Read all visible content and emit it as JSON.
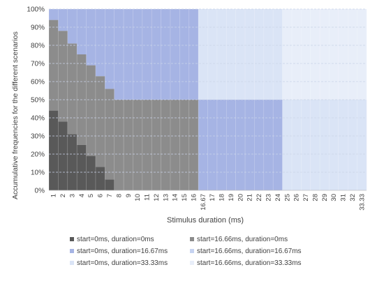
{
  "chart_data": {
    "type": "area",
    "stacked": true,
    "percent_stacked": true,
    "xlabel": "Stimulus duration (ms)",
    "ylabel": "Accumulative frequencies for the different scenarios",
    "y_ticks": [
      "0%",
      "10%",
      "20%",
      "30%",
      "40%",
      "50%",
      "60%",
      "70%",
      "80%",
      "90%",
      "100%"
    ],
    "ylim": [
      0,
      100
    ],
    "grid": true,
    "legend_position": "bottom",
    "categories": [
      "1",
      "2",
      "3",
      "4",
      "5",
      "6",
      "7",
      "8",
      "9",
      "10",
      "11",
      "12",
      "13",
      "14",
      "15",
      "16",
      "16.67",
      "17",
      "18",
      "19",
      "20",
      "21",
      "22",
      "23",
      "24",
      "25",
      "26",
      "27",
      "28",
      "29",
      "30",
      "31",
      "32",
      "33.33"
    ],
    "series": [
      {
        "name": "start=0ms, duration=0ms",
        "color": "#595959",
        "values": [
          44,
          38,
          31,
          25,
          19,
          13,
          6,
          0,
          0,
          0,
          0,
          0,
          0,
          0,
          0,
          0,
          0,
          0,
          0,
          0,
          0,
          0,
          0,
          0,
          0,
          0,
          0,
          0,
          0,
          0,
          0,
          0,
          0,
          0
        ]
      },
      {
        "name": "start=16.66ms, duration=0ms",
        "color": "#8c8c8c",
        "values": [
          50,
          50,
          50,
          50,
          50,
          50,
          50,
          50,
          50,
          50,
          50,
          50,
          50,
          50,
          50,
          50,
          0,
          0,
          0,
          0,
          0,
          0,
          0,
          0,
          0,
          0,
          0,
          0,
          0,
          0,
          0,
          0,
          0,
          0
        ]
      },
      {
        "name": "start=0ms, duration=16.67ms",
        "color": "#a6b4e4",
        "values": [
          6,
          12,
          19,
          25,
          31,
          37,
          44,
          50,
          50,
          50,
          50,
          50,
          50,
          50,
          50,
          50,
          50,
          50,
          50,
          50,
          50,
          50,
          50,
          50,
          50,
          0,
          0,
          0,
          0,
          0,
          0,
          0,
          0,
          0
        ]
      },
      {
        "name": "start=16.66ms, duration=16.67ms",
        "color": "#c6d3f1",
        "values": [
          0,
          0,
          0,
          0,
          0,
          0,
          0,
          0,
          0,
          0,
          0,
          0,
          0,
          0,
          0,
          0,
          0,
          0,
          0,
          0,
          0,
          0,
          0,
          0,
          0,
          0,
          0,
          0,
          0,
          0,
          0,
          0,
          0,
          0
        ]
      },
      {
        "name": "start=0ms, duration=33.33ms",
        "color": "#dae4f6",
        "values": [
          0,
          0,
          0,
          0,
          0,
          0,
          0,
          0,
          0,
          0,
          0,
          0,
          0,
          0,
          0,
          0,
          50,
          50,
          50,
          50,
          50,
          50,
          50,
          50,
          50,
          50,
          50,
          50,
          50,
          50,
          50,
          50,
          50,
          50
        ]
      },
      {
        "name": "start=16.66ms, duration=33.33ms",
        "color": "#e8eef9",
        "values": [
          0,
          0,
          0,
          0,
          0,
          0,
          0,
          0,
          0,
          0,
          0,
          0,
          0,
          0,
          0,
          0,
          0,
          0,
          0,
          0,
          0,
          0,
          0,
          0,
          0,
          50,
          50,
          50,
          50,
          50,
          50,
          50,
          50,
          50
        ]
      }
    ]
  }
}
